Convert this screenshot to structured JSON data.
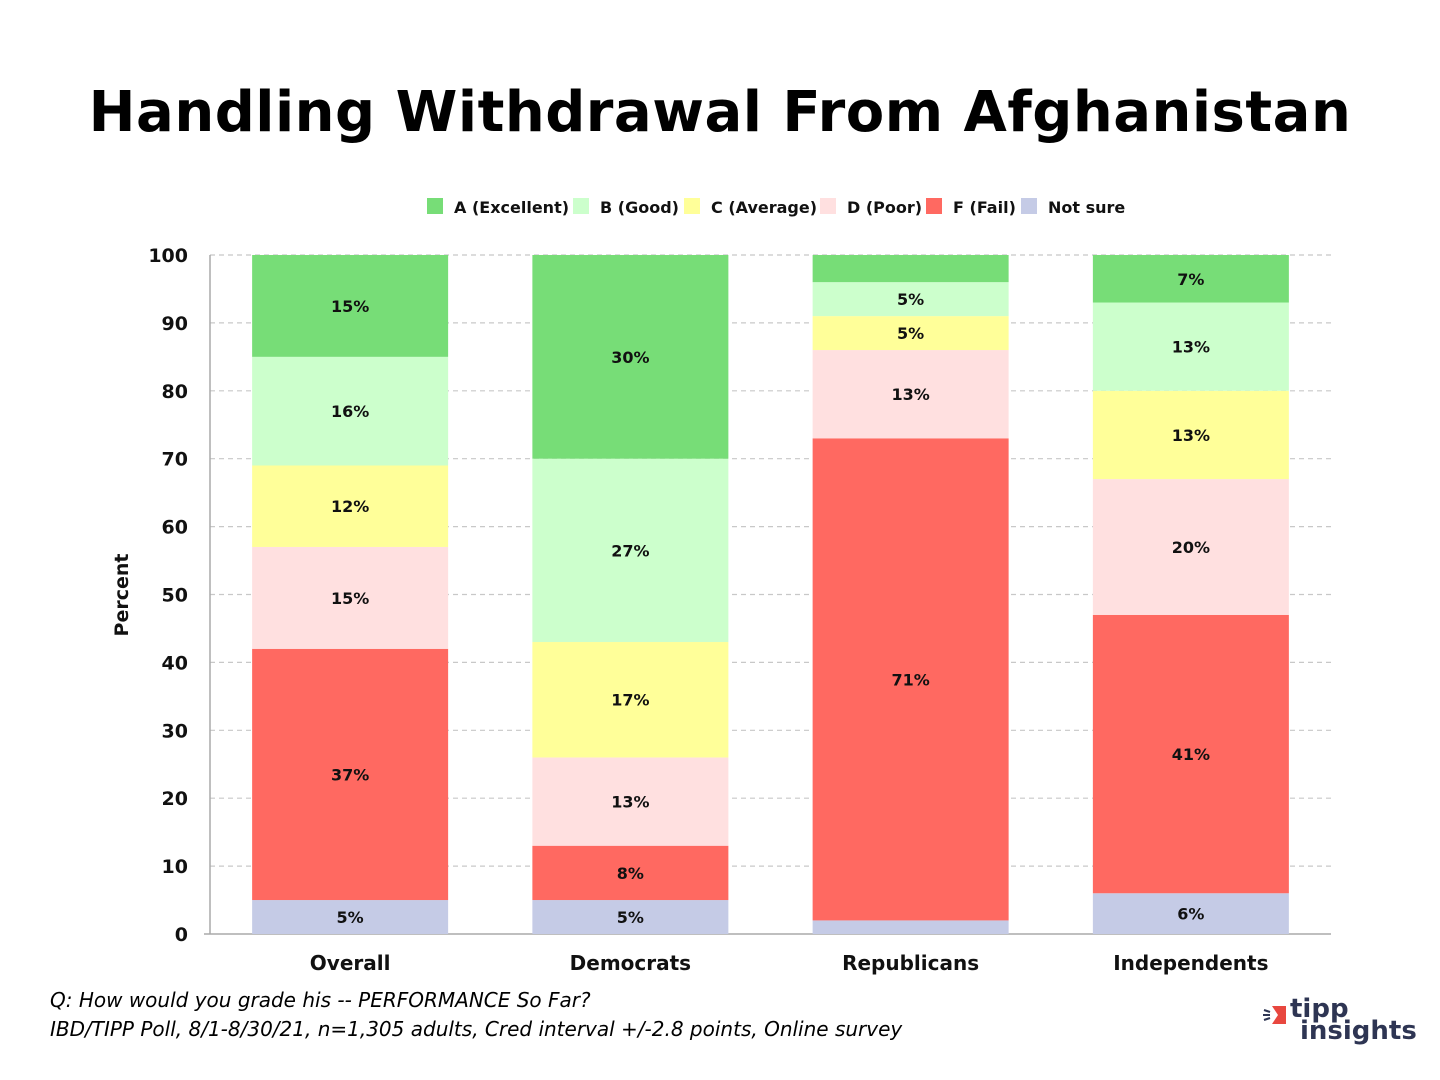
{
  "chart_data": {
    "type": "bar",
    "stacked": true,
    "title": "Handling Withdrawal From Afghanistan",
    "xlabel": "",
    "ylabel": "Percent",
    "ylim": [
      0,
      100
    ],
    "yticks": [
      0,
      10,
      20,
      30,
      40,
      50,
      60,
      70,
      80,
      90,
      100
    ],
    "grid": true,
    "legend_position": "top",
    "categories": [
      "Overall",
      "Democrats",
      "Republicans",
      "Independents"
    ],
    "series": [
      {
        "name": "Not sure",
        "color": "#c5cbe6",
        "values": [
          5,
          5,
          2,
          6
        ],
        "labels": [
          "5%",
          "5%",
          null,
          "6%"
        ]
      },
      {
        "name": "F (Fail)",
        "color": "#ff6961",
        "values": [
          37,
          8,
          71,
          41
        ],
        "labels": [
          "37%",
          "8%",
          "71%",
          "41%"
        ]
      },
      {
        "name": "D (Poor)",
        "color": "#ffe0e0",
        "values": [
          15,
          13,
          13,
          20
        ],
        "labels": [
          "15%",
          "13%",
          "13%",
          "20%"
        ]
      },
      {
        "name": "C (Average)",
        "color": "#ffff99",
        "values": [
          12,
          17,
          5,
          13
        ],
        "labels": [
          "12%",
          "17%",
          "5%",
          "13%"
        ]
      },
      {
        "name": "B (Good)",
        "color": "#ccffcc",
        "values": [
          16,
          27,
          5,
          13
        ],
        "labels": [
          "16%",
          "27%",
          "5%",
          "13%"
        ]
      },
      {
        "name": "A (Excellent)",
        "color": "#77dd77",
        "values": [
          15,
          30,
          4,
          7
        ],
        "labels": [
          "15%",
          "30%",
          null,
          "7%"
        ]
      }
    ],
    "legend_order": [
      "A (Excellent)",
      "B (Good)",
      "C (Average)",
      "D (Poor)",
      "F (Fail)",
      "Not sure"
    ]
  },
  "footer": {
    "question": "Q:  How would you grade his -- PERFORMANCE So Far?",
    "source": "IBD/TIPP Poll, 8/1-8/30/21, n=1,305 adults, Cred interval +/-2.8 points, Online survey"
  },
  "logo": {
    "line1": "tipp",
    "line2": "insights",
    "accent": "#e8473f"
  }
}
